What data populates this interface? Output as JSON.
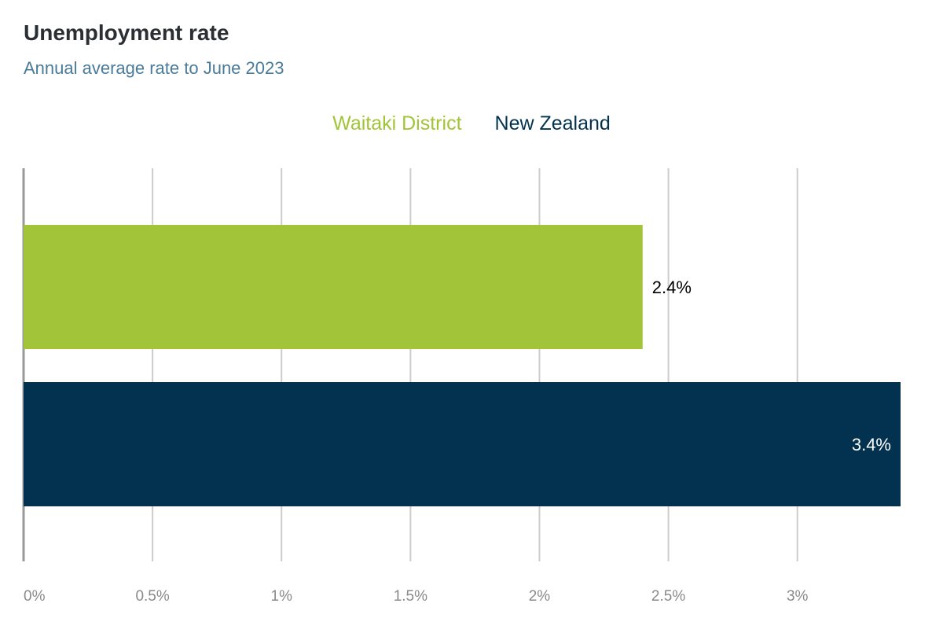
{
  "chart_data": {
    "type": "bar",
    "orientation": "horizontal",
    "title": "Unemployment rate",
    "subtitle": "Annual average rate to June 2023",
    "categories": [
      "Waitaki District",
      "New Zealand"
    ],
    "series": [
      {
        "name": "Waitaki District",
        "value": 2.4,
        "label": "2.4%",
        "color": "#a2c438",
        "label_color": "#000000"
      },
      {
        "name": "New Zealand",
        "value": 3.4,
        "label": "3.4%",
        "color": "#023250",
        "label_color": "#ffffff"
      }
    ],
    "x_ticks": [
      {
        "value": 0,
        "label": "0%"
      },
      {
        "value": 0.5,
        "label": "0.5%"
      },
      {
        "value": 1,
        "label": "1%"
      },
      {
        "value": 1.5,
        "label": "1.5%"
      },
      {
        "value": 2,
        "label": "2%"
      },
      {
        "value": 2.5,
        "label": "2.5%"
      },
      {
        "value": 3,
        "label": "3%"
      }
    ],
    "xlim": [
      0,
      3.4
    ],
    "xlabel": "",
    "ylabel": "",
    "grid": true,
    "legend_position": "top-center"
  }
}
